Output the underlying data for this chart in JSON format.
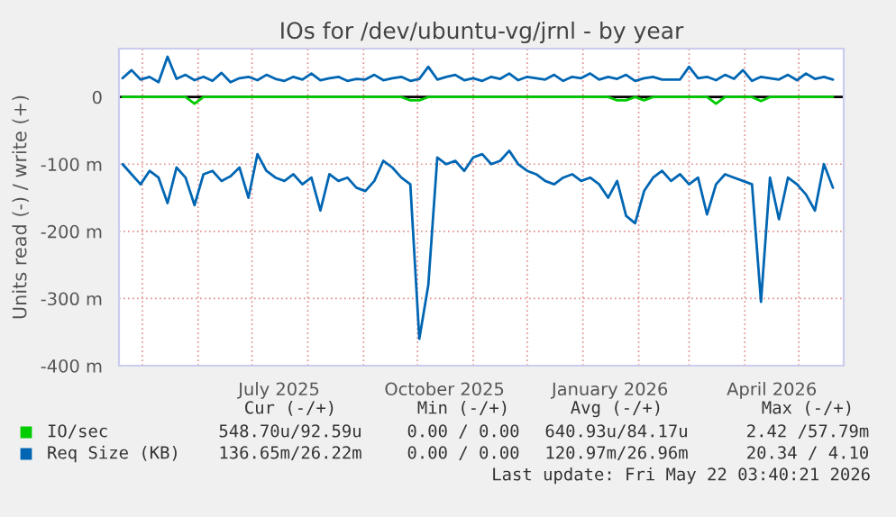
{
  "chart_data": {
    "type": "line",
    "title": "IOs for /dev/ubuntu-vg/jrnl - by year",
    "ylabel": "Units read (-) / write (+)",
    "x": [
      "2025-04-20",
      "2025-04-25",
      "2025-04-30",
      "2025-05-05",
      "2025-05-10",
      "2025-05-15",
      "2025-05-20",
      "2025-05-25",
      "2025-05-30",
      "2025-06-04",
      "2025-06-09",
      "2025-06-14",
      "2025-06-19",
      "2025-06-24",
      "2025-06-29",
      "2025-07-04",
      "2025-07-09",
      "2025-07-14",
      "2025-07-19",
      "2025-07-24",
      "2025-07-29",
      "2025-08-03",
      "2025-08-08",
      "2025-08-13",
      "2025-08-18",
      "2025-08-23",
      "2025-08-28",
      "2025-09-02",
      "2025-09-07",
      "2025-09-12",
      "2025-09-17",
      "2025-09-22",
      "2025-09-27",
      "2025-10-02",
      "2025-10-07",
      "2025-10-12",
      "2025-10-17",
      "2025-10-22",
      "2025-10-27",
      "2025-11-01",
      "2025-11-06",
      "2025-11-11",
      "2025-11-16",
      "2025-11-21",
      "2025-11-26",
      "2025-12-01",
      "2025-12-06",
      "2025-12-11",
      "2025-12-16",
      "2025-12-21",
      "2025-12-26",
      "2025-12-31",
      "2026-01-05",
      "2026-01-10",
      "2026-01-15",
      "2026-01-20",
      "2026-01-25",
      "2026-01-30",
      "2026-02-04",
      "2026-02-09",
      "2026-02-14",
      "2026-02-19",
      "2026-02-24",
      "2026-03-01",
      "2026-03-06",
      "2026-03-11",
      "2026-03-16",
      "2026-03-21",
      "2026-03-26",
      "2026-03-31",
      "2026-04-05",
      "2026-04-10",
      "2026-04-15",
      "2026-04-20",
      "2026-04-25",
      "2026-04-30",
      "2026-05-05",
      "2026-05-10",
      "2026-05-15",
      "2026-05-20"
    ],
    "series": [
      {
        "name": "IO/sec",
        "color": "#00cc00",
        "values": [
          0,
          0,
          0,
          0,
          0,
          0,
          0,
          0,
          -10,
          0,
          0,
          0,
          0,
          0,
          0,
          0,
          0,
          0,
          0,
          0,
          0,
          0,
          0,
          0,
          0,
          0,
          0,
          0,
          0,
          0,
          0,
          0,
          -5,
          -5,
          0,
          0,
          0,
          0,
          0,
          0,
          0,
          0,
          0,
          0,
          0,
          0,
          0,
          0,
          0,
          0,
          0,
          0,
          0,
          0,
          0,
          -5,
          -5,
          0,
          -5,
          0,
          0,
          0,
          0,
          0,
          0,
          0,
          -10,
          0,
          0,
          0,
          0,
          -6,
          0,
          0,
          0,
          0,
          0,
          0,
          0,
          0
        ]
      },
      {
        "name": "Req Size (KB)",
        "color": "#0066b3",
        "values": [
          28,
          40,
          26,
          30,
          22,
          60,
          27,
          33,
          25,
          30,
          24,
          36,
          22,
          28,
          30,
          25,
          33,
          27,
          24,
          30,
          26,
          35,
          25,
          28,
          30,
          24,
          27,
          26,
          33,
          25,
          28,
          30,
          24,
          27,
          45,
          26,
          30,
          33,
          25,
          28,
          24,
          30,
          27,
          35,
          25,
          30,
          28,
          26,
          33,
          24,
          30,
          28,
          35,
          26,
          30,
          27,
          33,
          24,
          28,
          30,
          26,
          26,
          26,
          45,
          28,
          30,
          25,
          33,
          27,
          40,
          24,
          30,
          28,
          26,
          33,
          25,
          35,
          27,
          30,
          26
        ]
      },
      {
        "color": "#0066b3",
        "values": [
          -100,
          -115,
          -130,
          -110,
          -120,
          -158,
          -105,
          -120,
          -161,
          -115,
          -110,
          -125,
          -118,
          -105,
          -150,
          -85,
          -110,
          -120,
          -125,
          -115,
          -130,
          -120,
          -169,
          -115,
          -125,
          -120,
          -135,
          -140,
          -125,
          -95,
          -105,
          -120,
          -130,
          -360,
          -280,
          -90,
          -100,
          -95,
          -110,
          -90,
          -85,
          -100,
          -95,
          -80,
          -100,
          -110,
          -115,
          -125,
          -130,
          -120,
          -115,
          -125,
          -120,
          -130,
          -150,
          -125,
          -177,
          -188,
          -140,
          -120,
          -110,
          -125,
          -115,
          -130,
          -120,
          -175,
          -130,
          -115,
          -120,
          -125,
          -130,
          -305,
          -120,
          -182,
          -120,
          -130,
          -145,
          -169,
          -100,
          -135
        ]
      }
    ],
    "xlim": [
      "2025-04-18",
      "2026-05-26"
    ],
    "xticks": [
      {
        "value": "2025-05-01",
        "label": null
      },
      {
        "value": "2025-06-01",
        "label": null
      },
      {
        "value": "2025-07-01",
        "label": null
      },
      {
        "value": "2025-07-16",
        "label": "July 2025"
      },
      {
        "value": "2025-08-01",
        "label": null
      },
      {
        "value": "2025-09-01",
        "label": null
      },
      {
        "value": "2025-10-01",
        "label": null
      },
      {
        "value": "2025-10-16",
        "label": "October 2025"
      },
      {
        "value": "2025-11-01",
        "label": null
      },
      {
        "value": "2025-12-01",
        "label": null
      },
      {
        "value": "2026-01-01",
        "label": null
      },
      {
        "value": "2026-01-16",
        "label": "January 2026"
      },
      {
        "value": "2026-02-01",
        "label": null
      },
      {
        "value": "2026-03-01",
        "label": null
      },
      {
        "value": "2026-04-01",
        "label": null
      },
      {
        "value": "2026-04-16",
        "label": "April 2026"
      },
      {
        "value": "2026-05-01",
        "label": null
      }
    ],
    "ylim": [
      -400,
      72
    ],
    "yticks": [
      {
        "value": -400,
        "label": "-400 m"
      },
      {
        "value": -300,
        "label": "-300 m"
      },
      {
        "value": -200,
        "label": "-200 m"
      },
      {
        "value": -100,
        "label": "-100 m"
      },
      0
    ],
    "ref_lines": [
      {
        "axis": "y",
        "value": 0,
        "color": "#000000"
      }
    ],
    "grid": true,
    "legend": "bottom",
    "annotations": [
      "Cur (-/+)",
      "Min (-/+)",
      "Avg (-/+)",
      "Max (-/+)",
      "548.70u/92.59u",
      "0.00 / 0.00",
      "640.93u/84.17u",
      "2.42 /57.79m",
      "136.65m/26.22m",
      "0.00 / 0.00",
      "120.97m/26.96m",
      "20.34 / 4.10",
      "Last update: Fri May 22 03:40:21 2026"
    ]
  }
}
